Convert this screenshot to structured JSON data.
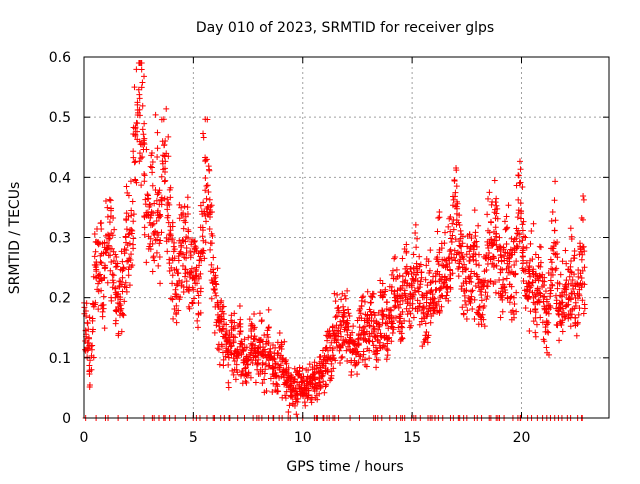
{
  "chart_data": {
    "type": "scatter",
    "title": "Day 010 of 2023, SRMTID for receiver glps",
    "xlabel": "GPS time / hours",
    "ylabel": "SRMTID / TECUs",
    "xlim": [
      0,
      24
    ],
    "ylim": [
      0,
      0.6
    ],
    "xticks": [
      0,
      5,
      10,
      15,
      20
    ],
    "xtick_labels": [
      "0",
      "5",
      "10",
      "15",
      "20"
    ],
    "yticks": [
      0,
      0.1,
      0.2,
      0.3,
      0.4,
      0.5,
      0.6
    ],
    "ytick_labels": [
      "0",
      "0.1",
      "0.2",
      "0.3",
      "0.4",
      "0.5",
      "0.6"
    ],
    "grid": true,
    "marker": "+",
    "color": "#ff0000",
    "series": [
      {
        "name": "SRMTID",
        "x": [
          0.0,
          0.1,
          0.2,
          0.3,
          0.4,
          0.5,
          0.6,
          0.7,
          0.8,
          0.9,
          1.0,
          1.1,
          1.2,
          1.3,
          1.4,
          1.5,
          1.6,
          1.7,
          1.8,
          1.9,
          2.0,
          2.1,
          2.2,
          2.3,
          2.4,
          2.5,
          2.6,
          2.7,
          2.8,
          2.9,
          3.0,
          3.1,
          3.2,
          3.3,
          3.4,
          3.5,
          3.6,
          3.7,
          3.8,
          3.9,
          4.0,
          4.1,
          4.2,
          4.3,
          4.4,
          4.5,
          4.6,
          4.7,
          4.8,
          4.9,
          5.0,
          5.1,
          5.2,
          5.3,
          5.4,
          5.5,
          5.6,
          5.7,
          5.8,
          5.9,
          6.0,
          6.1,
          6.2,
          6.3,
          6.4,
          6.5,
          6.6,
          6.7,
          6.8,
          6.9,
          7.0,
          7.1,
          7.2,
          7.3,
          7.4,
          7.5,
          7.6,
          7.7,
          7.8,
          7.9,
          8.0,
          8.1,
          8.2,
          8.3,
          8.4,
          8.5,
          8.6,
          8.7,
          8.8,
          8.9,
          9.0,
          9.1,
          9.2,
          9.3,
          9.4,
          9.5,
          9.6,
          9.7,
          9.8,
          9.9,
          10.0,
          10.1,
          10.2,
          10.3,
          10.4,
          10.5,
          10.6,
          10.7,
          10.8,
          10.9,
          11.0,
          11.1,
          11.2,
          11.3,
          11.4,
          11.5,
          11.6,
          11.7,
          11.8,
          11.9,
          12.0,
          12.1,
          12.2,
          12.3,
          12.4,
          12.5,
          12.6,
          12.7,
          12.8,
          12.9,
          13.0,
          13.1,
          13.2,
          13.3,
          13.4,
          13.5,
          13.6,
          13.7,
          13.8,
          13.9,
          14.0,
          14.1,
          14.2,
          14.3,
          14.4,
          14.5,
          14.6,
          14.7,
          14.8,
          14.9,
          15.0,
          15.1,
          15.2,
          15.3,
          15.4,
          15.5,
          15.6,
          15.7,
          15.8,
          15.9,
          16.0,
          16.1,
          16.2,
          16.3,
          16.4,
          16.5,
          16.6,
          16.7,
          16.8,
          16.9,
          17.0,
          17.1,
          17.2,
          17.3,
          17.4,
          17.5,
          17.6,
          17.7,
          17.8,
          17.9,
          18.0,
          18.1,
          18.2,
          18.3,
          18.4,
          18.5,
          18.6,
          18.7,
          18.8,
          18.9,
          19.0,
          19.1,
          19.2,
          19.3,
          19.4,
          19.5,
          19.6,
          19.7,
          19.8,
          19.9,
          20.0,
          20.1,
          20.2,
          20.3,
          20.4,
          20.5,
          20.6,
          20.7,
          20.8,
          20.9,
          21.0,
          21.1,
          21.2,
          21.3,
          21.4,
          21.5,
          21.6,
          21.7,
          21.8,
          21.9,
          22.0,
          22.1,
          22.2,
          22.3,
          22.4,
          22.5,
          22.6,
          22.7,
          22.8,
          22.9
        ],
        "y": [
          0.22,
          0.15,
          0.12,
          0.1,
          0.16,
          0.25,
          0.27,
          0.24,
          0.26,
          0.22,
          0.31,
          0.3,
          0.33,
          0.28,
          0.24,
          0.22,
          0.17,
          0.2,
          0.24,
          0.28,
          0.3,
          0.29,
          0.33,
          0.44,
          0.49,
          0.53,
          0.52,
          0.47,
          0.4,
          0.34,
          0.31,
          0.36,
          0.33,
          0.39,
          0.37,
          0.32,
          0.43,
          0.45,
          0.38,
          0.33,
          0.29,
          0.24,
          0.21,
          0.23,
          0.27,
          0.29,
          0.28,
          0.31,
          0.26,
          0.24,
          0.26,
          0.28,
          0.22,
          0.24,
          0.31,
          0.38,
          0.39,
          0.37,
          0.29,
          0.24,
          0.21,
          0.18,
          0.15,
          0.16,
          0.14,
          0.12,
          0.1,
          0.13,
          0.13,
          0.12,
          0.11,
          0.14,
          0.12,
          0.1,
          0.08,
          0.09,
          0.11,
          0.13,
          0.12,
          0.1,
          0.11,
          0.13,
          0.1,
          0.09,
          0.13,
          0.11,
          0.08,
          0.09,
          0.07,
          0.09,
          0.1,
          0.08,
          0.07,
          0.06,
          0.05,
          0.06,
          0.05,
          0.04,
          0.05,
          0.06,
          0.05,
          0.04,
          0.05,
          0.06,
          0.05,
          0.07,
          0.08,
          0.06,
          0.07,
          0.08,
          0.09,
          0.1,
          0.11,
          0.1,
          0.13,
          0.15,
          0.16,
          0.14,
          0.15,
          0.17,
          0.16,
          0.15,
          0.11,
          0.13,
          0.1,
          0.12,
          0.14,
          0.16,
          0.14,
          0.13,
          0.15,
          0.17,
          0.16,
          0.14,
          0.13,
          0.15,
          0.17,
          0.18,
          0.16,
          0.15,
          0.17,
          0.19,
          0.21,
          0.2,
          0.19,
          0.18,
          0.22,
          0.24,
          0.21,
          0.2,
          0.22,
          0.23,
          0.25,
          0.21,
          0.2,
          0.19,
          0.17,
          0.19,
          0.22,
          0.2,
          0.18,
          0.24,
          0.26,
          0.22,
          0.25,
          0.24,
          0.21,
          0.27,
          0.3,
          0.33,
          0.35,
          0.31,
          0.28,
          0.25,
          0.22,
          0.24,
          0.26,
          0.25,
          0.23,
          0.27,
          0.24,
          0.2,
          0.18,
          0.21,
          0.25,
          0.3,
          0.28,
          0.26,
          0.31,
          0.28,
          0.24,
          0.22,
          0.26,
          0.29,
          0.27,
          0.24,
          0.22,
          0.25,
          0.3,
          0.34,
          0.32,
          0.27,
          0.23,
          0.2,
          0.22,
          0.25,
          0.21,
          0.19,
          0.22,
          0.24,
          0.2,
          0.18,
          0.16,
          0.22,
          0.27,
          0.3,
          0.24,
          0.18,
          0.17,
          0.2,
          0.23,
          0.21,
          0.19,
          0.25,
          0.22,
          0.18,
          0.21,
          0.24,
          0.28,
          0.22
        ]
      }
    ]
  }
}
